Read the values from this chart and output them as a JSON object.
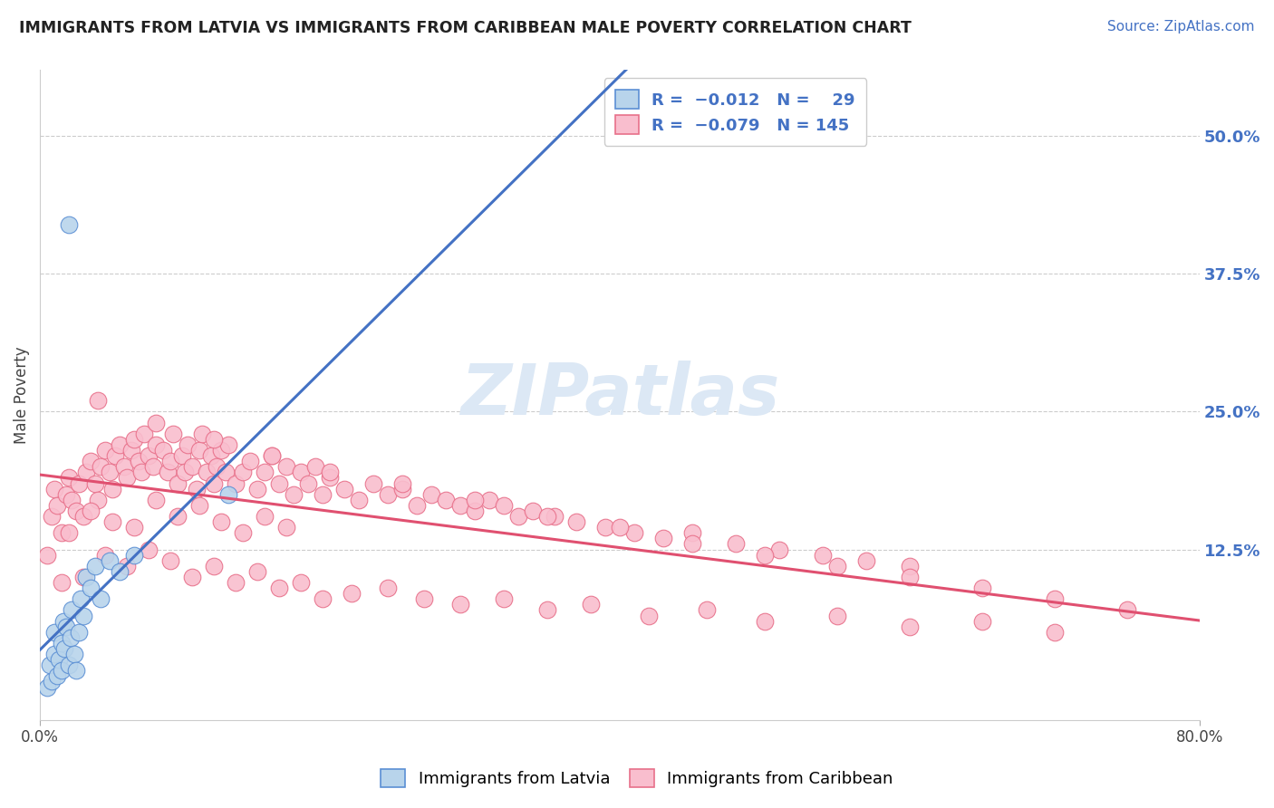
{
  "title": "IMMIGRANTS FROM LATVIA VS IMMIGRANTS FROM CARIBBEAN MALE POVERTY CORRELATION CHART",
  "source": "Source: ZipAtlas.com",
  "ylabel": "Male Poverty",
  "legend_label1_short": "Immigrants from Latvia",
  "legend_label2_short": "Immigrants from Caribbean",
  "color_latvia_fill": "#b8d4eb",
  "color_caribbean_fill": "#f9bece",
  "color_latvia_edge": "#5b8fd4",
  "color_caribbean_edge": "#e8708a",
  "color_latvia_line": "#4472c4",
  "color_caribbean_line": "#e05070",
  "watermark_color": "#dce8f5",
  "xmin": 0.0,
  "xmax": 0.8,
  "ymin": -0.03,
  "ymax": 0.56,
  "right_ytick_vals": [
    0.125,
    0.25,
    0.375,
    0.5
  ],
  "right_ytick_labels": [
    "12.5%",
    "25.0%",
    "37.5%",
    "50.0%"
  ],
  "latvia_x": [
    0.005,
    0.007,
    0.008,
    0.01,
    0.01,
    0.012,
    0.013,
    0.015,
    0.015,
    0.016,
    0.017,
    0.018,
    0.02,
    0.021,
    0.022,
    0.024,
    0.025,
    0.027,
    0.028,
    0.03,
    0.032,
    0.035,
    0.038,
    0.042,
    0.048,
    0.055,
    0.065,
    0.13,
    0.02
  ],
  "latvia_y": [
    0.0,
    0.02,
    0.005,
    0.03,
    0.05,
    0.01,
    0.025,
    0.015,
    0.04,
    0.06,
    0.035,
    0.055,
    0.02,
    0.045,
    0.07,
    0.03,
    0.015,
    0.05,
    0.08,
    0.065,
    0.1,
    0.09,
    0.11,
    0.08,
    0.115,
    0.105,
    0.12,
    0.175,
    0.42
  ],
  "caribbean_x": [
    0.005,
    0.008,
    0.01,
    0.012,
    0.015,
    0.018,
    0.02,
    0.022,
    0.025,
    0.027,
    0.03,
    0.032,
    0.035,
    0.038,
    0.04,
    0.042,
    0.045,
    0.048,
    0.05,
    0.052,
    0.055,
    0.058,
    0.06,
    0.063,
    0.065,
    0.068,
    0.07,
    0.072,
    0.075,
    0.078,
    0.08,
    0.085,
    0.088,
    0.09,
    0.092,
    0.095,
    0.098,
    0.1,
    0.102,
    0.105,
    0.108,
    0.11,
    0.112,
    0.115,
    0.118,
    0.12,
    0.122,
    0.125,
    0.128,
    0.13,
    0.135,
    0.14,
    0.145,
    0.15,
    0.155,
    0.16,
    0.165,
    0.17,
    0.175,
    0.18,
    0.185,
    0.19,
    0.195,
    0.2,
    0.21,
    0.22,
    0.23,
    0.24,
    0.25,
    0.26,
    0.27,
    0.28,
    0.29,
    0.3,
    0.31,
    0.32,
    0.33,
    0.34,
    0.355,
    0.37,
    0.39,
    0.41,
    0.43,
    0.45,
    0.48,
    0.51,
    0.54,
    0.57,
    0.6,
    0.02,
    0.035,
    0.05,
    0.065,
    0.08,
    0.095,
    0.11,
    0.125,
    0.14,
    0.155,
    0.17,
    0.015,
    0.03,
    0.045,
    0.06,
    0.075,
    0.09,
    0.105,
    0.12,
    0.135,
    0.15,
    0.165,
    0.18,
    0.195,
    0.215,
    0.24,
    0.265,
    0.29,
    0.32,
    0.35,
    0.38,
    0.42,
    0.46,
    0.5,
    0.55,
    0.6,
    0.65,
    0.7,
    0.04,
    0.08,
    0.12,
    0.16,
    0.2,
    0.25,
    0.3,
    0.35,
    0.4,
    0.45,
    0.5,
    0.55,
    0.6,
    0.65,
    0.7,
    0.75
  ],
  "caribbean_y": [
    0.12,
    0.155,
    0.18,
    0.165,
    0.14,
    0.175,
    0.19,
    0.17,
    0.16,
    0.185,
    0.155,
    0.195,
    0.205,
    0.185,
    0.17,
    0.2,
    0.215,
    0.195,
    0.18,
    0.21,
    0.22,
    0.2,
    0.19,
    0.215,
    0.225,
    0.205,
    0.195,
    0.23,
    0.21,
    0.2,
    0.22,
    0.215,
    0.195,
    0.205,
    0.23,
    0.185,
    0.21,
    0.195,
    0.22,
    0.2,
    0.18,
    0.215,
    0.23,
    0.195,
    0.21,
    0.185,
    0.2,
    0.215,
    0.195,
    0.22,
    0.185,
    0.195,
    0.205,
    0.18,
    0.195,
    0.21,
    0.185,
    0.2,
    0.175,
    0.195,
    0.185,
    0.2,
    0.175,
    0.19,
    0.18,
    0.17,
    0.185,
    0.175,
    0.18,
    0.165,
    0.175,
    0.17,
    0.165,
    0.16,
    0.17,
    0.165,
    0.155,
    0.16,
    0.155,
    0.15,
    0.145,
    0.14,
    0.135,
    0.14,
    0.13,
    0.125,
    0.12,
    0.115,
    0.11,
    0.14,
    0.16,
    0.15,
    0.145,
    0.17,
    0.155,
    0.165,
    0.15,
    0.14,
    0.155,
    0.145,
    0.095,
    0.1,
    0.12,
    0.11,
    0.125,
    0.115,
    0.1,
    0.11,
    0.095,
    0.105,
    0.09,
    0.095,
    0.08,
    0.085,
    0.09,
    0.08,
    0.075,
    0.08,
    0.07,
    0.075,
    0.065,
    0.07,
    0.06,
    0.065,
    0.055,
    0.06,
    0.05,
    0.26,
    0.24,
    0.225,
    0.21,
    0.195,
    0.185,
    0.17,
    0.155,
    0.145,
    0.13,
    0.12,
    0.11,
    0.1,
    0.09,
    0.08,
    0.07
  ]
}
